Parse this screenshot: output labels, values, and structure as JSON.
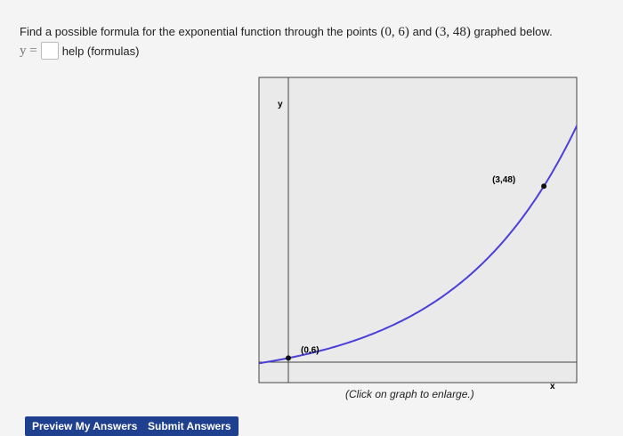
{
  "question": {
    "text": "Find a possible formula for the exponential function through the points",
    "point_a": "(0, 6)",
    "joiner": "and",
    "point_b": "(3, 48)",
    "tail": "graphed below.",
    "answer_label": "y =",
    "help": "help (formulas)"
  },
  "graph": {
    "y_label": "y",
    "x_label": "x",
    "points": [
      {
        "x": 0,
        "y": 6,
        "label": "(0,6)"
      },
      {
        "x": 3,
        "y": 48,
        "label": "(3,48)"
      }
    ],
    "caption": "(Click on graph to enlarge.)"
  },
  "buttons": [
    "Preview My Answers",
    "Submit Answers"
  ]
}
